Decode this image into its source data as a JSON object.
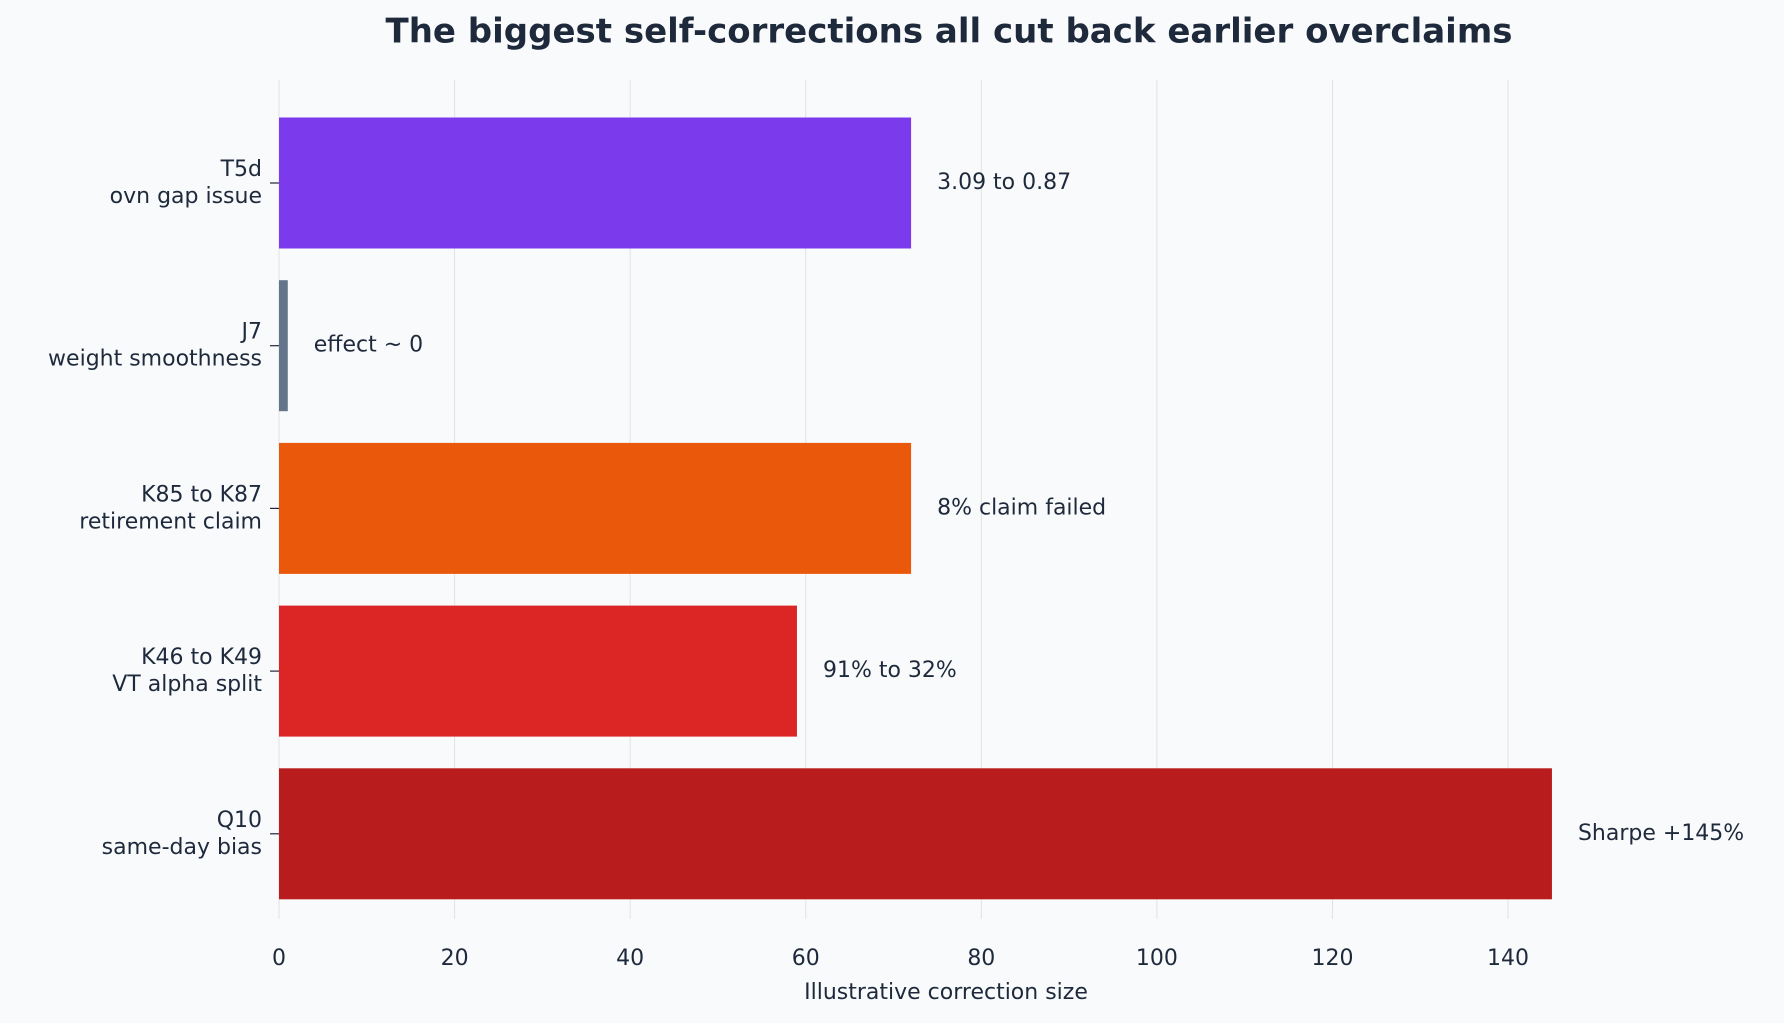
{
  "chart_data": {
    "type": "barh",
    "title": "The biggest self-corrections all cut back earlier overclaims",
    "xlabel": "Illustrative correction size",
    "categories": [
      [
        "T5d",
        "ovn gap issue"
      ],
      [
        "J7",
        "weight smoothness"
      ],
      [
        "K85 to K87",
        "retirement claim"
      ],
      [
        "K46 to K49",
        "VT alpha split"
      ],
      [
        "Q10",
        "same-day bias"
      ]
    ],
    "values": [
      72,
      1,
      72,
      59,
      145
    ],
    "colors": [
      "#7c3aed",
      "#64748b",
      "#ea580c",
      "#dc2626",
      "#b91c1c"
    ],
    "annotations": [
      "3.09 to 0.87",
      "effect ~ 0",
      "8% claim failed",
      "91% to 32%",
      "Sharpe +145%"
    ],
    "xlim": [
      0,
      152
    ],
    "xticks": [
      0,
      20,
      40,
      60,
      80,
      100,
      120,
      140
    ],
    "grid": true
  }
}
